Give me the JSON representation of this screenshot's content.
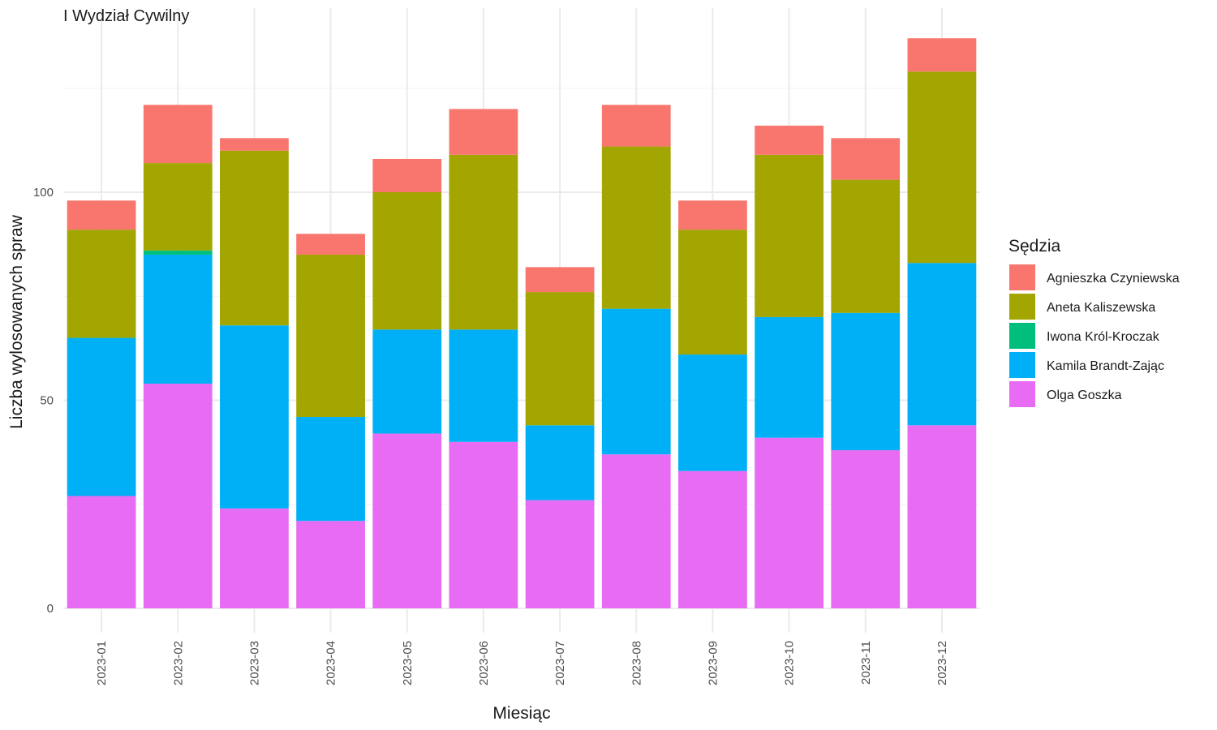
{
  "chart_data": {
    "type": "bar",
    "stacked": true,
    "title": "I Wydział Cywilny",
    "xlabel": "Miesiąc",
    "ylabel": "Liczba wylosowanych spraw",
    "ylim": [
      0,
      140
    ],
    "yticks": [
      0,
      50,
      100
    ],
    "grid": true,
    "legend_position": "right",
    "legend_title": "Sędzia",
    "categories": [
      "2023-01",
      "2023-02",
      "2023-03",
      "2023-04",
      "2023-05",
      "2023-06",
      "2023-07",
      "2023-08",
      "2023-09",
      "2023-10",
      "2023-11",
      "2023-12"
    ],
    "series": [
      {
        "name": "Agnieszka Czyniewska",
        "color": "#F8766D",
        "values": [
          7,
          14,
          3,
          5,
          8,
          11,
          6,
          10,
          7,
          7,
          10,
          8
        ]
      },
      {
        "name": "Aneta Kaliszewska",
        "color": "#A3A500",
        "values": [
          26,
          21,
          42,
          39,
          33,
          42,
          32,
          39,
          30,
          39,
          32,
          46
        ]
      },
      {
        "name": "Iwona Król-Kroczak",
        "color": "#00BF7D",
        "values": [
          0,
          1,
          0,
          0,
          0,
          0,
          0,
          0,
          0,
          0,
          0,
          0
        ]
      },
      {
        "name": "Kamila Brandt-Zając",
        "color": "#00B0F6",
        "values": [
          38,
          31,
          44,
          25,
          25,
          27,
          18,
          35,
          28,
          29,
          33,
          39
        ]
      },
      {
        "name": "Olga Goszka",
        "color": "#E76BF3",
        "values": [
          27,
          54,
          24,
          21,
          42,
          40,
          26,
          37,
          33,
          41,
          38,
          44
        ]
      }
    ]
  }
}
